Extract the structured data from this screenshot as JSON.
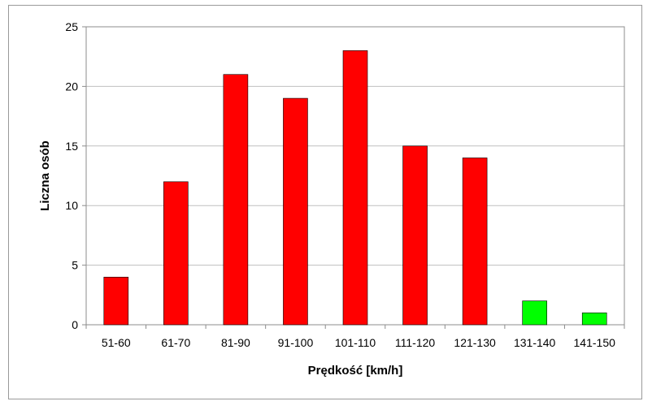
{
  "chart_data": {
    "type": "bar",
    "title": "",
    "xlabel": "Prędkość [km/h]",
    "ylabel": "Liczna osób",
    "categories": [
      "51-60",
      "61-70",
      "81-90",
      "91-100",
      "101-110",
      "111-120",
      "121-130",
      "131-140",
      "141-150"
    ],
    "values": [
      4,
      12,
      21,
      19,
      23,
      15,
      14,
      2,
      1
    ],
    "bar_colors": [
      "#ff0000",
      "#ff0000",
      "#ff0000",
      "#ff0000",
      "#ff0000",
      "#ff0000",
      "#ff0000",
      "#00ff00",
      "#00ff00"
    ],
    "ylim": [
      0,
      25
    ],
    "yticks": [
      0,
      5,
      10,
      15,
      20,
      25
    ],
    "grid": true,
    "legend": "none"
  }
}
